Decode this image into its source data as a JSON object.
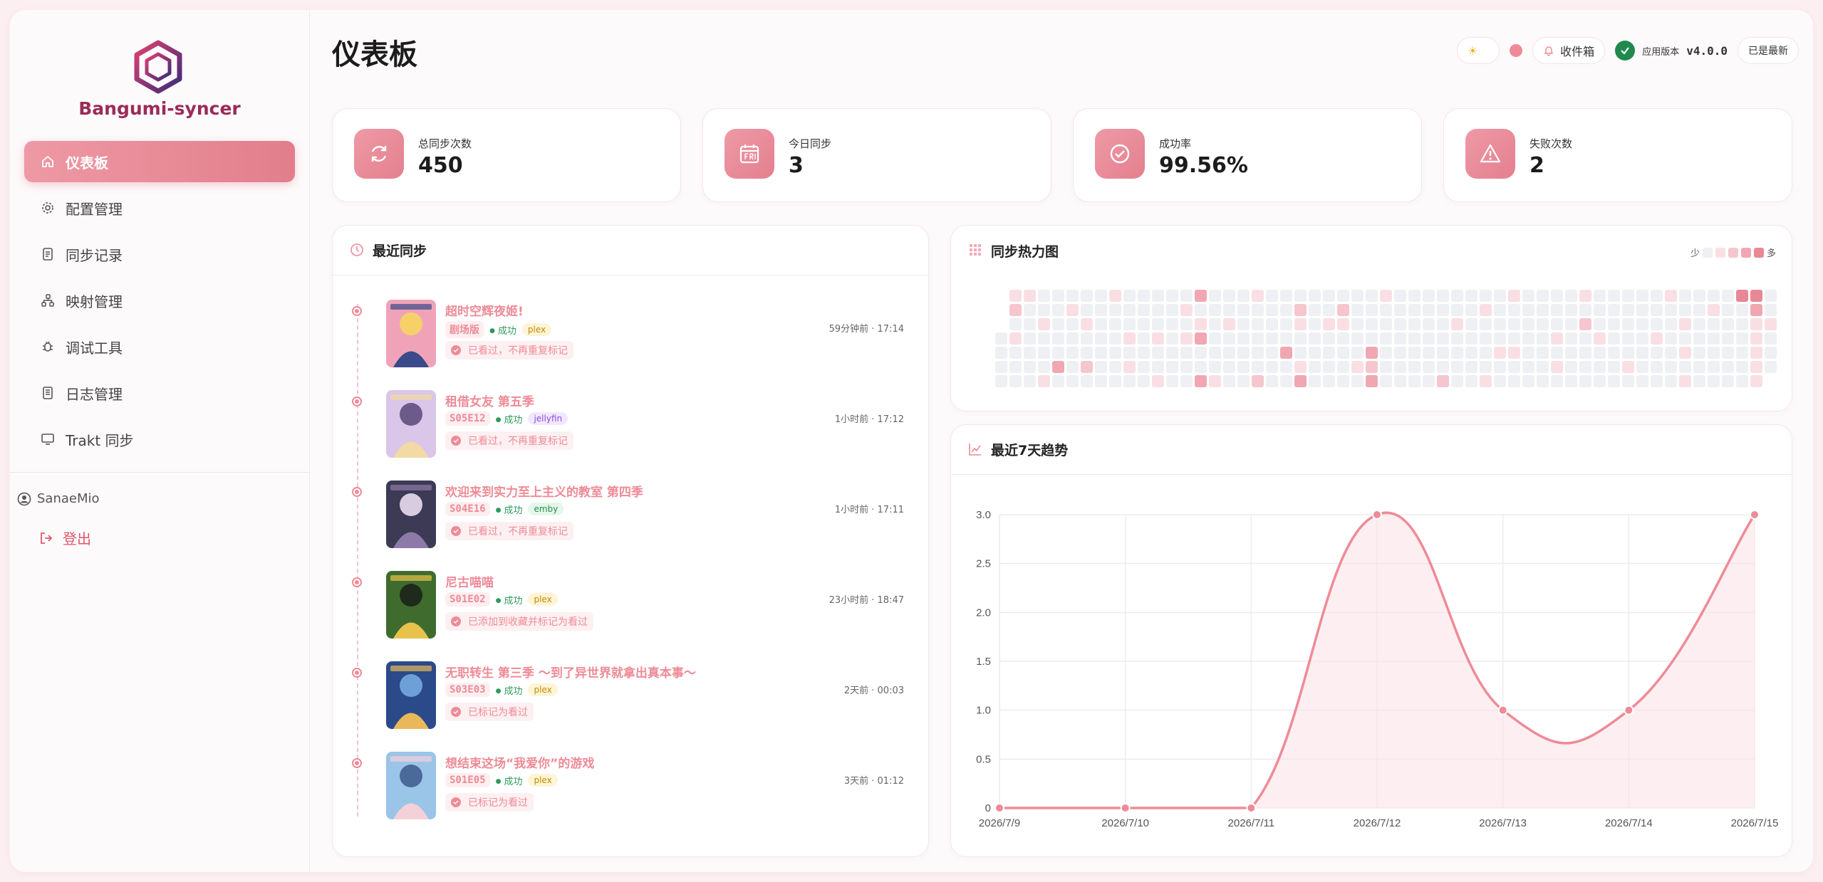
{
  "brand": {
    "name": "Bangumi-syncer"
  },
  "nav": [
    {
      "label": "仪表板",
      "icon": "home-icon",
      "active": true
    },
    {
      "label": "配置管理",
      "icon": "gear-icon",
      "active": false
    },
    {
      "label": "同步记录",
      "icon": "records-icon",
      "active": false
    },
    {
      "label": "映射管理",
      "icon": "mapping-icon",
      "active": false
    },
    {
      "label": "调试工具",
      "icon": "bug-icon",
      "active": false
    },
    {
      "label": "日志管理",
      "icon": "log-icon",
      "active": false
    },
    {
      "label": "Trakt 同步",
      "icon": "monitor-icon",
      "active": false
    }
  ],
  "user": {
    "name": "SanaeMio"
  },
  "logout": {
    "label": "登出"
  },
  "page": {
    "title": "仪表板"
  },
  "toolbar": {
    "inbox_label": "收件箱",
    "version_label": "应用版本",
    "version": "v4.0.0",
    "update_status": "已是最新"
  },
  "stats": [
    {
      "label": "总同步次数",
      "value": "450",
      "icon": "refresh-icon"
    },
    {
      "label": "今日同步",
      "value": "3",
      "icon": "calendar-icon"
    },
    {
      "label": "成功率",
      "value": "99.56%",
      "icon": "check-circle-icon"
    },
    {
      "label": "失败次数",
      "value": "2",
      "icon": "warning-icon"
    }
  ],
  "recent": {
    "title": "最近同步",
    "items": [
      {
        "title": "超时空辉夜姬!",
        "episode": "剧场版",
        "status": "成功",
        "source": "plex",
        "note": "已看过，不再重复标记",
        "time": "59分钟前 · 17:14",
        "cover": [
          "#f0a3b8",
          "#3a4a8a",
          "#f7d06a"
        ]
      },
      {
        "title": "租借女友 第五季",
        "episode": "S05E12",
        "status": "成功",
        "source": "jellyfin",
        "note": "已看过，不再重复标记",
        "time": "1小时前 · 17:12",
        "cover": [
          "#d9c6e8",
          "#f2d9a6",
          "#6b5a8a"
        ]
      },
      {
        "title": "欢迎来到实力至上主义的教室 第四季",
        "episode": "S04E16",
        "status": "成功",
        "source": "emby",
        "note": "已看过，不再重复标记",
        "time": "1小时前 · 17:11",
        "cover": [
          "#3c3a55",
          "#8e7aa8",
          "#d8cde0"
        ]
      },
      {
        "title": "尼古喵喵",
        "episode": "S01E02",
        "status": "成功",
        "source": "plex",
        "note": "已添加到收藏并标记为看过",
        "time": "23小时前 · 18:47",
        "cover": [
          "#3f6b2e",
          "#e8c24a",
          "#1e2a1a"
        ]
      },
      {
        "title": "无职转生 第三季 ～到了异世界就拿出真本事～",
        "episode": "S03E03",
        "status": "成功",
        "source": "plex",
        "note": "已标记为看过",
        "time": "2天前 · 00:03",
        "cover": [
          "#2a4a8a",
          "#e9b85a",
          "#6ea0d8"
        ]
      },
      {
        "title": "想结束这场“我爱你”的游戏",
        "episode": "S01E05",
        "status": "成功",
        "source": "plex",
        "note": "已标记为看过",
        "time": "3天前 · 01:12",
        "cover": [
          "#9ac4e8",
          "#f4d0d8",
          "#4a6a9a"
        ]
      }
    ]
  },
  "heatmap": {
    "title": "同步热力图",
    "legend_less": "少",
    "legend_more": "多",
    "levels": [
      "#eef0f3",
      "#f9dfe3",
      "#f6c6ce",
      "#f0a7b2",
      "#e98895"
    ],
    "weeks": [
      [
        -1,
        -1,
        -1,
        0,
        0,
        0,
        0
      ],
      [
        1,
        2,
        0,
        1,
        0,
        0,
        0
      ],
      [
        1,
        0,
        0,
        0,
        0,
        0,
        0
      ],
      [
        0,
        0,
        1,
        0,
        0,
        0,
        1
      ],
      [
        0,
        0,
        0,
        0,
        0,
        3,
        0
      ],
      [
        0,
        1,
        0,
        0,
        0,
        0,
        0
      ],
      [
        0,
        0,
        1,
        0,
        0,
        2,
        0
      ],
      [
        0,
        0,
        0,
        0,
        0,
        0,
        0
      ],
      [
        1,
        0,
        0,
        0,
        0,
        0,
        0
      ],
      [
        0,
        0,
        0,
        1,
        0,
        1,
        0
      ],
      [
        0,
        0,
        0,
        0,
        0,
        0,
        0
      ],
      [
        0,
        0,
        0,
        1,
        0,
        0,
        1
      ],
      [
        0,
        0,
        0,
        0,
        0,
        0,
        0
      ],
      [
        0,
        1,
        0,
        1,
        0,
        0,
        0
      ],
      [
        3,
        0,
        1,
        3,
        0,
        0,
        3
      ],
      [
        0,
        0,
        0,
        0,
        0,
        0,
        1
      ],
      [
        0,
        0,
        1,
        0,
        0,
        0,
        0
      ],
      [
        0,
        0,
        0,
        0,
        0,
        0,
        0
      ],
      [
        1,
        0,
        0,
        0,
        0,
        0,
        2
      ],
      [
        0,
        0,
        0,
        0,
        0,
        0,
        0
      ],
      [
        0,
        0,
        0,
        0,
        3,
        0,
        0
      ],
      [
        0,
        2,
        1,
        0,
        0,
        1,
        3
      ],
      [
        0,
        0,
        0,
        0,
        0,
        0,
        0
      ],
      [
        0,
        0,
        1,
        0,
        0,
        0,
        0
      ],
      [
        0,
        2,
        1,
        0,
        0,
        0,
        0
      ],
      [
        0,
        0,
        0,
        0,
        0,
        1,
        0
      ],
      [
        0,
        0,
        0,
        0,
        3,
        2,
        3
      ],
      [
        1,
        0,
        0,
        0,
        0,
        0,
        0
      ],
      [
        0,
        0,
        0,
        0,
        0,
        0,
        0
      ],
      [
        0,
        0,
        0,
        0,
        0,
        0,
        0
      ],
      [
        0,
        0,
        0,
        0,
        0,
        0,
        0
      ],
      [
        0,
        0,
        0,
        0,
        0,
        0,
        2
      ],
      [
        0,
        0,
        1,
        0,
        0,
        0,
        0
      ],
      [
        0,
        0,
        0,
        0,
        0,
        0,
        0
      ],
      [
        0,
        1,
        0,
        0,
        0,
        0,
        1
      ],
      [
        0,
        0,
        0,
        0,
        1,
        0,
        0
      ],
      [
        1,
        0,
        0,
        0,
        1,
        0,
        0
      ],
      [
        0,
        0,
        0,
        0,
        0,
        0,
        0
      ],
      [
        0,
        0,
        0,
        0,
        0,
        0,
        0
      ],
      [
        0,
        0,
        0,
        1,
        0,
        1,
        0
      ],
      [
        0,
        0,
        0,
        0,
        0,
        0,
        0
      ],
      [
        1,
        0,
        2,
        0,
        0,
        0,
        0
      ],
      [
        0,
        0,
        0,
        1,
        0,
        0,
        0
      ],
      [
        0,
        0,
        0,
        0,
        0,
        0,
        0
      ],
      [
        0,
        0,
        0,
        0,
        0,
        1,
        0
      ],
      [
        0,
        0,
        0,
        0,
        0,
        0,
        0
      ],
      [
        0,
        0,
        0,
        1,
        0,
        0,
        0
      ],
      [
        1,
        0,
        0,
        0,
        0,
        0,
        0
      ],
      [
        0,
        0,
        1,
        0,
        1,
        0,
        1
      ],
      [
        0,
        0,
        0,
        0,
        0,
        0,
        0
      ],
      [
        0,
        1,
        0,
        0,
        0,
        0,
        0
      ],
      [
        0,
        0,
        0,
        0,
        0,
        0,
        0
      ],
      [
        4,
        0,
        0,
        0,
        0,
        0,
        0
      ],
      [
        4,
        3,
        1,
        1,
        1,
        1,
        1
      ],
      [
        0,
        0,
        1,
        0,
        0,
        0,
        -1
      ]
    ]
  },
  "trend": {
    "title": "最近7天趋势"
  },
  "chart_data": {
    "type": "line",
    "title": "最近7天趋势",
    "categories": [
      "2026/7/9",
      "2026/7/10",
      "2026/7/11",
      "2026/7/12",
      "2026/7/13",
      "2026/7/14",
      "2026/7/15"
    ],
    "values": [
      0,
      0,
      0,
      3,
      1,
      1,
      3
    ],
    "ylim": [
      0,
      3
    ],
    "yticks": [
      "0",
      "0.5",
      "1.0",
      "1.5",
      "2.0",
      "2.5",
      "3.0"
    ],
    "grid": true,
    "smooth": true,
    "fill": true,
    "color": "#ee8b97"
  },
  "colors": {
    "accent": "#ee8b97",
    "accent_dark": "#e27e8c",
    "brand": "#9a2b57",
    "success": "#2e9a5c"
  }
}
